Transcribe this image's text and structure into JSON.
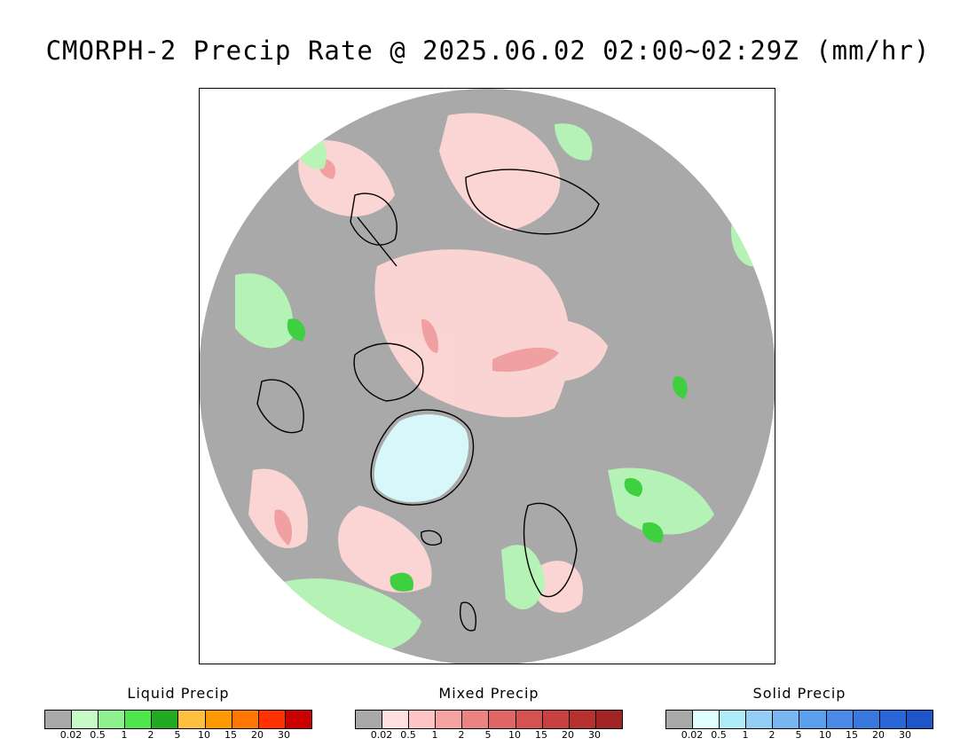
{
  "title": "CMORPH-2 Precip Rate @ 2025.06.02 02:00~02:29Z (mm/hr)",
  "map": {
    "projection": "north polar stereographic",
    "background_color": "#a9a9a9",
    "features": {
      "greenland_solid_precip": "light cyan (solid precip)",
      "mixed_precip_areas": "pink regions over Arctic Ocean, Alaska, Siberia, Greenland Sea",
      "liquid_precip_areas": "green regions over N. Atlantic, Canada, Scandinavia, Russia"
    }
  },
  "legends": [
    {
      "title": "Liquid Precip",
      "colors": [
        "#a9a9a9",
        "#c8fac8",
        "#8ff08f",
        "#4de64d",
        "#22aa22",
        "#ffbf3f",
        "#ff9900",
        "#ff7700",
        "#ff3300",
        "#cc0000"
      ],
      "ticks": [
        "0.02",
        "0.5",
        "1",
        "2",
        "5",
        "10",
        "15",
        "20",
        "30"
      ]
    },
    {
      "title": "Mixed Precip",
      "colors": [
        "#a9a9a9",
        "#ffe0e0",
        "#ffc4c4",
        "#f5a3a3",
        "#eb8383",
        "#e06666",
        "#d65252",
        "#c94040",
        "#b83030",
        "#a32424"
      ],
      "ticks": [
        "0.02",
        "0.5",
        "1",
        "2",
        "5",
        "10",
        "15",
        "20",
        "30"
      ]
    },
    {
      "title": "Solid Precip",
      "colors": [
        "#a9a9a9",
        "#e0ffff",
        "#b0ecf7",
        "#96cdf5",
        "#78b6f2",
        "#5aa0ee",
        "#4a8ae8",
        "#3a78e0",
        "#2a66d8",
        "#1e55c8"
      ],
      "ticks": [
        "0.02",
        "0.5",
        "1",
        "2",
        "5",
        "10",
        "15",
        "20",
        "30"
      ]
    }
  ]
}
